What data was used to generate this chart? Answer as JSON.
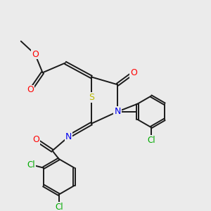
{
  "background_color": "#ebebeb",
  "atom_colors": {
    "C": "#1a1a1a",
    "O": "#ff0000",
    "N": "#0000ee",
    "S": "#bbbb00",
    "Cl": "#00aa00"
  },
  "bond_color": "#1a1a1a",
  "bond_lw": 1.4,
  "dbl_off": 0.055
}
